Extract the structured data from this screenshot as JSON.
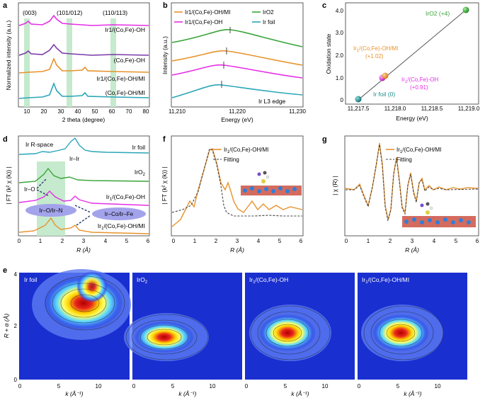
{
  "panels": {
    "a": {
      "letter": "a",
      "xlabel": "2 theta (degree)",
      "ylabel": "Normalized intensity (a.u.)",
      "xticks": [
        "10",
        "20",
        "30",
        "40",
        "50",
        "60",
        "70",
        "80"
      ],
      "peak_labels": [
        "(003)",
        "(101/012)",
        "(110/113)"
      ],
      "series": [
        {
          "name": "Ir1/(Co,Fe)-OH",
          "color": "#e52ee5"
        },
        {
          "name": "(Co,Fe)-OH",
          "color": "#7a3aa8"
        },
        {
          "name": "Ir1/(Co,Fe)-OH/MI",
          "color": "#e8932c"
        },
        {
          "name": "(Co,Fe)-OH/MI",
          "color": "#2aa6b8"
        }
      ],
      "highlight_color": "#bfe8c8"
    },
    "b": {
      "letter": "b",
      "xlabel": "Energy (eV)",
      "ylabel": "Intensity (a.u.)",
      "xticks": [
        "11,210",
        "11,220",
        "11,230"
      ],
      "legend": [
        {
          "name": "Ir1/(Co,Fe)-OH/MI",
          "color": "#e8932c"
        },
        {
          "name": "Ir1/(Co,Fe)-OH",
          "color": "#e52ee5"
        },
        {
          "name": "IrO2",
          "color": "#3aa43a"
        },
        {
          "name": "Ir foil",
          "color": "#2aa6b8"
        }
      ],
      "annotation": "Ir L3 edge"
    },
    "c": {
      "letter": "c",
      "xlabel": "Energy (eV)",
      "ylabel": "Oxidation state",
      "xticks": [
        "11,217.5",
        "11,218.0",
        "11,218.5",
        "11,219.0"
      ],
      "yticks": [
        "0",
        "1.0",
        "2.0",
        "3.0",
        "4.0"
      ],
      "points": [
        {
          "label": "Ir foil (0)",
          "x": 11217.48,
          "y": 0,
          "color": "#1f8a8a"
        },
        {
          "label": "Ir1/(Co,Fe)-OH\n(+0.91)",
          "x": 11217.77,
          "y": 0.91,
          "color": "#e52ee5"
        },
        {
          "label": "Ir1/(Co,Fe)-OH/MI\n(+1.02)",
          "x": 11217.8,
          "y": 1.02,
          "color": "#e8932c"
        },
        {
          "label": "IrO2 (+4)",
          "x": 11218.85,
          "y": 4.0,
          "color": "#3aa43a"
        }
      ]
    },
    "d": {
      "letter": "d",
      "xlabel": "R (Å)",
      "ylabel": "| FT (k² χ (k)) |",
      "xticks": [
        "0",
        "1",
        "2",
        "3",
        "4",
        "5",
        "6"
      ],
      "title": "Ir R-space",
      "labels": [
        "Ir foil",
        "IrO2",
        "Ir1/(Co,Fe)-OH",
        "Ir1/(Co,Fe)-OH/MI"
      ],
      "annotations": [
        "Ir–Ir",
        "Ir–O",
        "Ir–O/Ir–N",
        "Ir–Co/Ir–Fe"
      ]
    },
    "f": {
      "letter": "f",
      "xlabel": "R (Å)",
      "ylabel": "| FT (k² χ (k)) |",
      "xticks": [
        "0",
        "1",
        "2",
        "3",
        "4",
        "5",
        "6"
      ],
      "legend": [
        "Ir1/(Co,Fe)-OH/MI",
        "Fitting"
      ]
    },
    "g": {
      "letter": "g",
      "xlabel": "R (Å)",
      "ylabel": "| χ (R) |",
      "xticks": [
        "0",
        "1",
        "2",
        "3",
        "4",
        "5",
        "6"
      ],
      "legend": [
        "Ir1/(Co,Fe)-OH/MI",
        "Fitting"
      ]
    },
    "e": {
      "letter": "e",
      "ylabel": "R + α (Å)",
      "xlabel": "k (Å⁻¹)",
      "yticks": [
        "0",
        "2",
        "4"
      ],
      "xticks": [
        "0",
        "5",
        "10"
      ],
      "maps": [
        "Ir foil",
        "IrO2",
        "Ir1/(Co,Fe)-OH",
        "Ir1/(Co,Fe)-OH/MI"
      ]
    }
  }
}
